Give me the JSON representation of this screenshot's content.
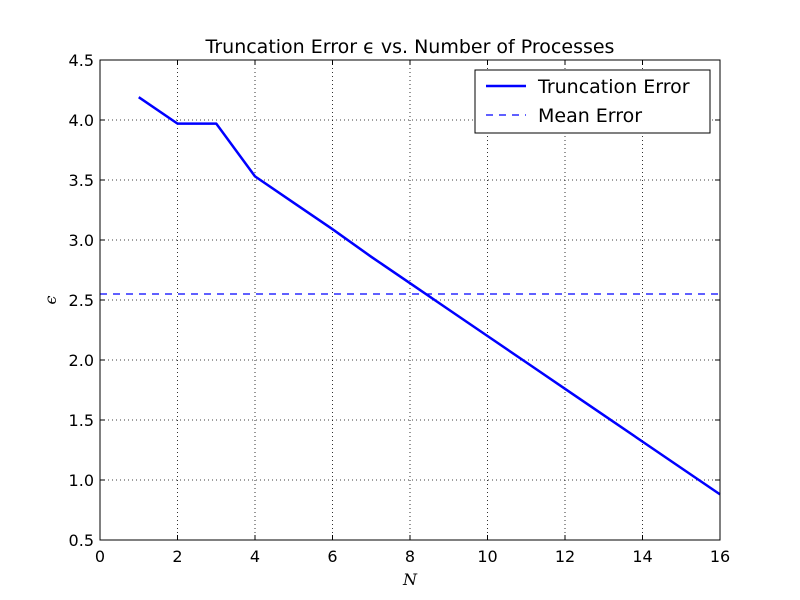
{
  "chart_data": {
    "type": "line",
    "title": "Truncation Error ϵ vs. Number of Processes",
    "xlabel": "N",
    "ylabel": "ϵ",
    "xlim": [
      0,
      16
    ],
    "ylim": [
      0.5,
      4.5
    ],
    "xticks": [
      0,
      2,
      4,
      6,
      8,
      10,
      12,
      14,
      16
    ],
    "yticks": [
      0.5,
      1.0,
      1.5,
      2.0,
      2.5,
      3.0,
      3.5,
      4.0,
      4.5
    ],
    "xtick_labels": [
      "0",
      "2",
      "4",
      "6",
      "8",
      "10",
      "12",
      "14",
      "16"
    ],
    "ytick_labels": [
      "0.5",
      "1.0",
      "1.5",
      "2.0",
      "2.5",
      "3.0",
      "3.5",
      "4.0",
      "4.5"
    ],
    "grid": true,
    "legend_position": "top-right",
    "series": [
      {
        "name": "Truncation Error",
        "style": "solid",
        "color": "#0000ff",
        "x": [
          1,
          2,
          3,
          4,
          5,
          6,
          7,
          8,
          9,
          10,
          11,
          12,
          13,
          14,
          15,
          16
        ],
        "y": [
          4.19,
          3.97,
          3.97,
          3.53,
          3.31,
          3.09,
          2.86,
          2.64,
          2.42,
          2.2,
          1.98,
          1.76,
          1.54,
          1.32,
          1.1,
          0.88
        ]
      },
      {
        "name": "Mean Error",
        "style": "dashed",
        "color": "#0000ff",
        "x": [
          0,
          16
        ],
        "y": [
          2.55,
          2.55
        ]
      }
    ]
  }
}
